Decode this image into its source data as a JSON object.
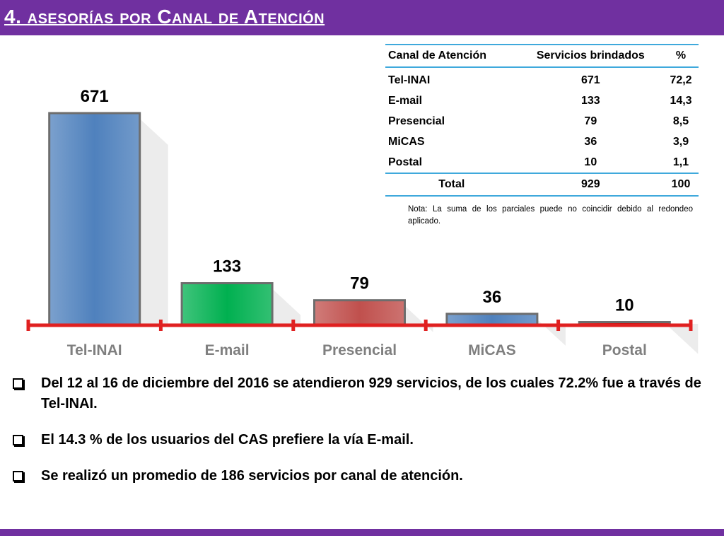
{
  "header": {
    "title": "4. asesorías por Canal de Atención"
  },
  "colors": {
    "header": "#7030a0",
    "axis": "#e02020",
    "table_rule": "#3fa9dc"
  },
  "table": {
    "headers": [
      "Canal de Atención",
      "Servicios brindados",
      "%"
    ],
    "rows": [
      [
        "Tel-INAI",
        "671",
        "72,2"
      ],
      [
        "E-mail",
        "133",
        "14,3"
      ],
      [
        "Presencial",
        "79",
        "8,5"
      ],
      [
        "MiCAS",
        "36",
        "3,9"
      ],
      [
        "Postal",
        "10",
        "1,1"
      ]
    ],
    "total": [
      "Total",
      "929",
      "100"
    ],
    "note": "Nota: La suma de los parciales puede no coincidir debido al redondeo aplicado."
  },
  "chart_data": {
    "type": "bar",
    "categories": [
      "Tel-INAI",
      "E-mail",
      "Presencial",
      "MiCAS",
      "Postal"
    ],
    "values": [
      671,
      133,
      79,
      36,
      10
    ],
    "colors": [
      "#4f81bd",
      "#00b050",
      "#c0504d",
      "#4f81bd",
      "#c00000"
    ],
    "data_labels": [
      "671",
      "133",
      "79",
      "36",
      "10"
    ],
    "title": "",
    "xlabel": "",
    "ylabel": "",
    "ylim": [
      0,
      671
    ],
    "grid": false,
    "legend": "none"
  },
  "bullets": [
    "Del 12 al 16 de diciembre del 2016 se atendieron 929 servicios, de los cuales 72.2% fue a través de Tel-INAI.",
    "El 14.3 % de los usuarios del CAS prefiere la vía E-mail.",
    "Se realizó un promedio de 186 servicios por canal de atención."
  ]
}
